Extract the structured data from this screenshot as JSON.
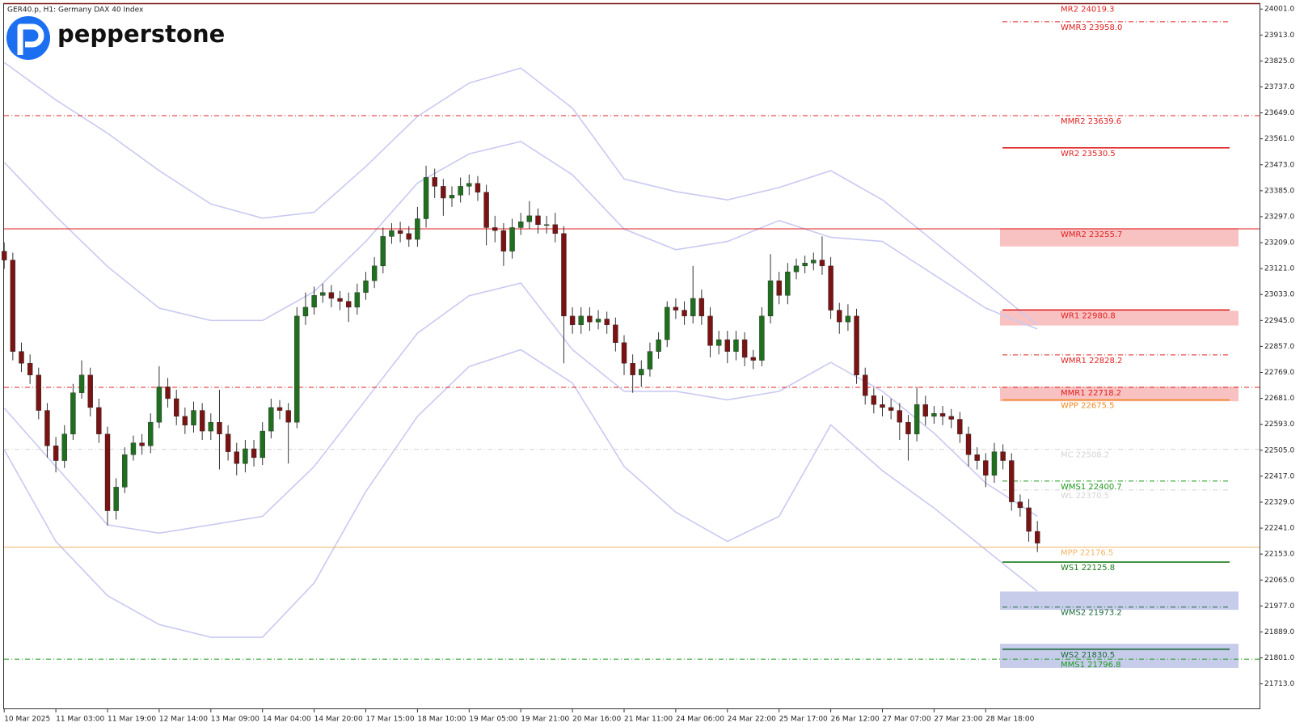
{
  "chart_data": {
    "type": "candlestick",
    "title": "GER40.p, H1:  Germany DAX 40 Index",
    "logo": "pepperstone",
    "categories": [
      "10 Mar 2025",
      "11 Mar 03:00",
      "11 Mar 19:00",
      "12 Mar 14:00",
      "13 Mar 09:00",
      "14 Mar 04:00",
      "14 Mar 20:00",
      "17 Mar 15:00",
      "18 Mar 10:00",
      "19 Mar 05:00",
      "19 Mar 21:00",
      "20 Mar 16:00",
      "21 Mar 11:00",
      "24 Mar 06:00",
      "24 Mar 22:00",
      "25 Mar 17:00",
      "26 Mar 12:00",
      "27 Mar 07:00",
      "27 Mar 23:00",
      "28 Mar 18:00"
    ],
    "up_color": "#1f6f1f",
    "down_color": "#7a1414",
    "open": [
      23180,
      23150,
      22840,
      22800,
      22760,
      22640,
      22520,
      22470,
      22560,
      22700,
      22760,
      22650,
      22560,
      22300,
      22380,
      22490,
      22530,
      22520,
      22600,
      22720,
      22680,
      22620,
      22590,
      22640,
      22570,
      22600,
      22560,
      22500,
      22460,
      22510,
      22480,
      22570,
      22650,
      22640,
      22600,
      22960,
      22990,
      23030,
      23040,
      23020,
      23010,
      22990,
      23040,
      23080,
      23130,
      23230,
      23250,
      23240,
      23220,
      23290,
      23430,
      23400,
      23360,
      23370,
      23400,
      23410,
      23380,
      23260,
      23250,
      23180,
      23260,
      23280,
      23300,
      23270,
      23270,
      23240,
      22960,
      22930,
      22960,
      22940,
      22950,
      22930,
      22870,
      22800,
      22760,
      22780,
      22840,
      22880,
      22990,
      22980,
      22960,
      23020,
      22960,
      22860,
      22880,
      22840,
      22880,
      22820,
      22810,
      22960,
      23080,
      23030,
      23110,
      23130,
      23140,
      23150,
      23130,
      22980,
      22940,
      22960,
      22760,
      22690,
      22660,
      22650,
      22640,
      22600,
      22560,
      22660,
      22620,
      22630,
      22620,
      22610,
      22560,
      22490,
      22470,
      22420,
      22500,
      22470,
      22330,
      22310,
      22230
    ],
    "high": [
      23210,
      23175,
      22870,
      22830,
      22785,
      22665,
      22550,
      22590,
      22730,
      22810,
      22785,
      22680,
      22585,
      22410,
      22515,
      22555,
      22560,
      22630,
      22790,
      22750,
      22710,
      22650,
      22670,
      22665,
      22630,
      22710,
      22590,
      22530,
      22540,
      22540,
      22600,
      22680,
      22675,
      22665,
      22990,
      23040,
      23060,
      23070,
      23065,
      23045,
      23040,
      23070,
      23110,
      23160,
      23260,
      23275,
      23280,
      23265,
      23330,
      23470,
      23460,
      23425,
      23400,
      23430,
      23440,
      23435,
      23405,
      23300,
      23275,
      23290,
      23310,
      23350,
      23325,
      23300,
      23310,
      23265,
      22990,
      22990,
      22990,
      22980,
      22975,
      22955,
      22895,
      22830,
      22810,
      22870,
      22905,
      23010,
      23020,
      23010,
      23130,
      23050,
      22990,
      22910,
      22910,
      22910,
      22905,
      22845,
      22990,
      23170,
      23110,
      23140,
      23155,
      23165,
      23175,
      23230,
      23160,
      23005,
      23000,
      22985,
      22785,
      22715,
      22690,
      22680,
      22665,
      22625,
      22720,
      22690,
      22655,
      22655,
      22645,
      22635,
      22585,
      22515,
      22495,
      22530,
      22525,
      22495,
      22355,
      22340,
      22265
    ],
    "low": [
      23120,
      22810,
      22770,
      22730,
      22610,
      22480,
      22430,
      22445,
      22540,
      22680,
      22620,
      22530,
      22250,
      22270,
      22360,
      22470,
      22490,
      22495,
      22580,
      22650,
      22590,
      22560,
      22565,
      22540,
      22540,
      22440,
      22470,
      22420,
      22430,
      22450,
      22455,
      22545,
      22610,
      22460,
      22580,
      22930,
      22965,
      23005,
      22990,
      22980,
      22940,
      22965,
      23015,
      23055,
      23105,
      23205,
      23210,
      23195,
      23195,
      23260,
      23360,
      23300,
      23330,
      23345,
      23370,
      23350,
      23200,
      23210,
      23130,
      23155,
      23235,
      23255,
      23240,
      23240,
      23210,
      22800,
      22900,
      22900,
      22910,
      22915,
      22900,
      22840,
      22760,
      22700,
      22720,
      22755,
      22815,
      22855,
      22950,
      22930,
      22935,
      22930,
      22820,
      22830,
      22800,
      22810,
      22790,
      22780,
      22790,
      22935,
      23000,
      23000,
      23085,
      23105,
      23115,
      23100,
      22950,
      22900,
      22910,
      22730,
      22660,
      22630,
      22620,
      22610,
      22540,
      22470,
      22535,
      22590,
      22595,
      22590,
      22580,
      22530,
      22450,
      22440,
      22380,
      22395,
      22440,
      22300,
      22280,
      22195,
      22160
    ],
    "close": [
      23150,
      22840,
      22800,
      22760,
      22640,
      22520,
      22470,
      22560,
      22700,
      22760,
      22650,
      22560,
      22300,
      22380,
      22490,
      22530,
      22520,
      22600,
      22720,
      22680,
      22620,
      22590,
      22640,
      22570,
      22600,
      22560,
      22500,
      22460,
      22510,
      22480,
      22570,
      22650,
      22640,
      22600,
      22960,
      22990,
      23030,
      23040,
      23020,
      23010,
      22990,
      23040,
      23080,
      23130,
      23230,
      23250,
      23240,
      23220,
      23290,
      23430,
      23400,
      23360,
      23370,
      23400,
      23410,
      23380,
      23260,
      23250,
      23180,
      23260,
      23280,
      23300,
      23270,
      23270,
      23240,
      22960,
      22930,
      22960,
      22940,
      22950,
      22930,
      22870,
      22800,
      22760,
      22780,
      22840,
      22880,
      22990,
      22980,
      22960,
      23020,
      22960,
      22860,
      22880,
      22840,
      22880,
      22820,
      22810,
      22960,
      23080,
      23030,
      23110,
      23130,
      23140,
      23150,
      23130,
      22980,
      22940,
      22960,
      22760,
      22690,
      22660,
      22650,
      22640,
      22600,
      22560,
      22660,
      22620,
      22630,
      22620,
      22610,
      22560,
      22490,
      22470,
      22420,
      22500,
      22470,
      22330,
      22310,
      22230,
      22190
    ],
    "band_x": [
      0,
      6,
      12,
      18,
      24,
      30,
      36,
      42,
      48,
      54,
      60,
      66,
      72,
      78,
      84,
      90,
      96,
      102,
      108,
      114,
      120
    ],
    "bands": [
      {
        "color": "#c9c9f2",
        "values": [
          23820,
          23693,
          23580,
          23453,
          23340,
          23292,
          23312,
          23467,
          23637,
          23750,
          23801,
          23665,
          23425,
          23382,
          23354,
          23396,
          23453,
          23354,
          23213,
          23072,
          22930
        ]
      },
      {
        "color": "#c9c9f2",
        "values": [
          23481,
          23298,
          23128,
          22987,
          22945,
          22945,
          23043,
          23213,
          23411,
          23510,
          23552,
          23439,
          23255,
          23185,
          23213,
          23284,
          23227,
          23213,
          23100,
          22987,
          22916
        ]
      },
      {
        "color": "#c9c9f2",
        "values": [
          22648,
          22450,
          22252,
          22224,
          22252,
          22281,
          22450,
          22676,
          22902,
          23029,
          23072,
          22846,
          22705,
          22705,
          22676,
          22705,
          22803,
          22705,
          22563,
          22394,
          22281
        ]
      },
      {
        "color": "#c9c9f2",
        "values": [
          22507,
          22196,
          22012,
          21914,
          21871,
          21871,
          22055,
          22365,
          22620,
          22789,
          22846,
          22733,
          22450,
          22295,
          22196,
          22281,
          22591,
          22436,
          22309,
          22168,
          22027
        ]
      }
    ],
    "zones": [
      {
        "low": 23196,
        "high": 23258,
        "color": "#f7b3b3"
      },
      {
        "low": 22928,
        "high": 22978,
        "color": "#f7b3b3"
      },
      {
        "low": 22671,
        "high": 22721,
        "color": "#f7b3b3"
      },
      {
        "low": 21964,
        "high": 22026,
        "color": "#b9bfe6"
      },
      {
        "low": 21767,
        "high": 21849,
        "color": "#b9bfe6"
      }
    ],
    "levels": [
      {
        "label": "MR2 24019.3",
        "value": 24019.3,
        "color": "#e02020",
        "style": "none",
        "full": false
      },
      {
        "label": "WMR3 23958.0",
        "value": 23958.0,
        "color": "#e02020",
        "style": "dashdot",
        "full": false
      },
      {
        "label": "MMR2 23639.6",
        "value": 23639.6,
        "color": "#e02020",
        "style": "dashdot",
        "full": true
      },
      {
        "label": "WR2 23530.5",
        "value": 23530.5,
        "color": "#e02020",
        "style": "solid",
        "full": false
      },
      {
        "label": "WMR2 23255.7",
        "value": 23255.7,
        "color": "#e02020",
        "style": "solid",
        "full": true
      },
      {
        "label": "WR1 22980.8",
        "value": 22980.8,
        "color": "#e02020",
        "style": "solid",
        "full": false
      },
      {
        "label": "WMR1 22828.2",
        "value": 22828.2,
        "color": "#e02020",
        "style": "dashdot",
        "full": false
      },
      {
        "label": "MMR1 22718.2",
        "value": 22718.2,
        "color": "#e02020",
        "style": "dashdot",
        "full": true
      },
      {
        "label": "WPP 22675.5",
        "value": 22675.5,
        "color": "#f08a20",
        "style": "solid",
        "full": false
      },
      {
        "label": "MC 22508.2",
        "value": 22508.2,
        "color": "#d4d4d4",
        "style": "dashdot",
        "full": true
      },
      {
        "label": "WMS1 22400.7",
        "value": 22400.7,
        "color": "#1e9a1e",
        "style": "dashdot",
        "full": false
      },
      {
        "label": "WL 22370.5",
        "value": 22370.5,
        "color": "#d4d4d4",
        "style": "dashdot",
        "full": false
      },
      {
        "label": "MPP 22176.5",
        "value": 22176.5,
        "color": "#f2b463",
        "style": "solid",
        "full": true
      },
      {
        "label": "WS1 22125.8",
        "value": 22125.8,
        "color": "#1a7a1a",
        "style": "solid",
        "full": false
      },
      {
        "label": "WMS2 21973.2",
        "value": 21973.2,
        "color": "#1a6a3a",
        "style": "dashdot",
        "full": false
      },
      {
        "label": "WS2 21830.5",
        "value": 21830.5,
        "color": "#1a6a3a",
        "style": "solid",
        "full": false
      },
      {
        "label": "MMS1 21796.8",
        "value": 21796.8,
        "color": "#1e9a1e",
        "style": "dashdot",
        "full": true
      }
    ],
    "ylim": [
      21627,
      24018
    ],
    "yticks": [
      {
        "value": 24001,
        "label": "24001.0"
      },
      {
        "value": 23913,
        "label": "23913.0"
      },
      {
        "value": 23825,
        "label": "23825.0"
      },
      {
        "value": 23737,
        "label": "23737.0"
      },
      {
        "value": 23649,
        "label": "23649.0"
      },
      {
        "value": 23561,
        "label": "23561.0"
      },
      {
        "value": 23473,
        "label": "23473.0"
      },
      {
        "value": 23385,
        "label": "23385.0"
      },
      {
        "value": 23297,
        "label": "23297.0"
      },
      {
        "value": 23209,
        "label": "23209.0"
      },
      {
        "value": 23121,
        "label": "23121.0"
      },
      {
        "value": 23033,
        "label": "23033.0"
      },
      {
        "value": 22945,
        "label": "22945.0"
      },
      {
        "value": 22857,
        "label": "22857.0"
      },
      {
        "value": 22769,
        "label": "22769.0"
      },
      {
        "value": 22681,
        "label": "22681.0"
      },
      {
        "value": 22593,
        "label": "22593.0"
      },
      {
        "value": 22505,
        "label": "22505.0"
      },
      {
        "value": 22417,
        "label": "22417.0"
      },
      {
        "value": 22329,
        "label": "22329.0"
      },
      {
        "value": 22241,
        "label": "22241.0"
      },
      {
        "value": 22153,
        "label": "22153.0"
      },
      {
        "value": 22065,
        "label": "22065.0"
      },
      {
        "value": 21977,
        "label": "21977.0"
      },
      {
        "value": 21889,
        "label": "21889.0"
      },
      {
        "value": 21801,
        "label": "21801.0"
      },
      {
        "value": 21713,
        "label": "21713.0"
      }
    ],
    "grid": false
  }
}
